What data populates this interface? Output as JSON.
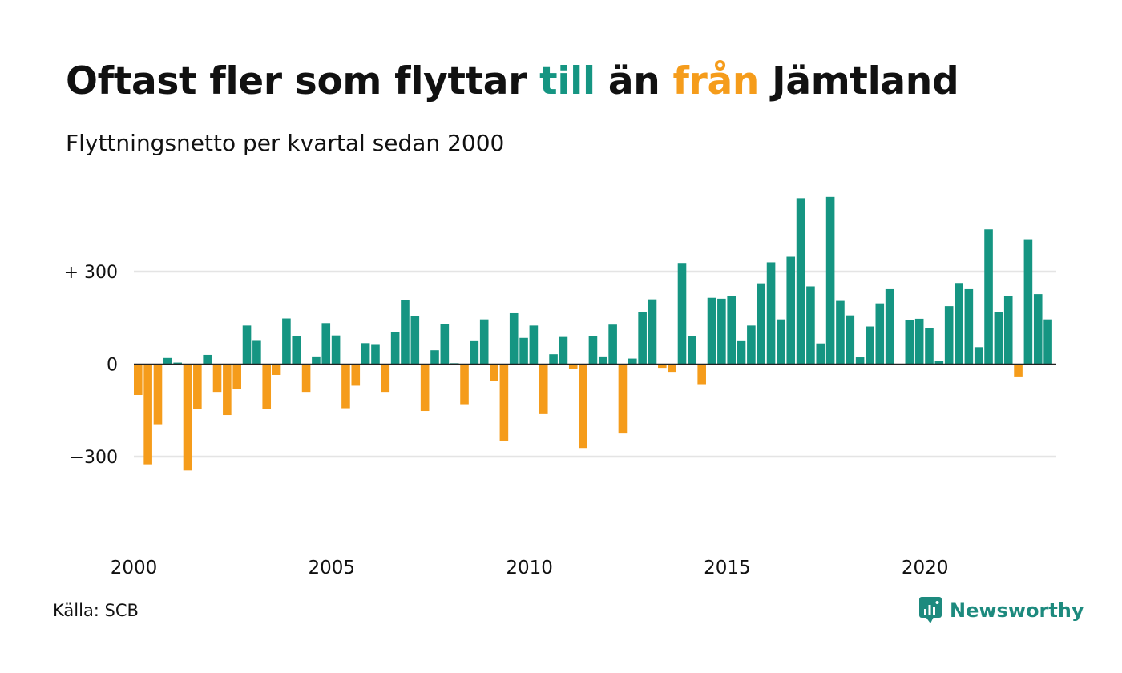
{
  "title": {
    "part1": "Oftast fler som flyttar ",
    "highlight_in": "till",
    "part2": " än ",
    "highlight_out": "från",
    "part3": " Jämtland"
  },
  "subtitle": "Flyttningsnetto per kvartal sedan 2000",
  "source": "Källa: SCB",
  "brand": {
    "name": "Newsworthy",
    "icon": "newsworthy-logo-icon",
    "color": "#1d8a7e"
  },
  "colors": {
    "positive": "#159582",
    "negative": "#f59c1b",
    "grid": "#e4e4e4",
    "zero_line": "#222222",
    "text": "#111111"
  },
  "chart_data": {
    "type": "bar",
    "start_year": 2000,
    "periods_per_year": 4,
    "ylim": [
      -520,
      600
    ],
    "grid": true,
    "y_ticks": [
      {
        "value": 300,
        "label": "+ 300"
      },
      {
        "value": 0,
        "label": "0"
      },
      {
        "value": -300,
        "label": "−300"
      }
    ],
    "x_ticks": [
      {
        "year": 2000,
        "label": "2000"
      },
      {
        "year": 2005,
        "label": "2005"
      },
      {
        "year": 2010,
        "label": "2010"
      },
      {
        "year": 2015,
        "label": "2015"
      },
      {
        "year": 2020,
        "label": "2020"
      }
    ],
    "values": [
      -100,
      -325,
      -195,
      20,
      5,
      -345,
      -145,
      30,
      -90,
      -165,
      -80,
      125,
      78,
      -145,
      -35,
      148,
      90,
      -90,
      25,
      133,
      93,
      -143,
      -70,
      68,
      65,
      -90,
      104,
      208,
      155,
      -152,
      45,
      130,
      3,
      -130,
      77,
      145,
      -55,
      -248,
      165,
      85,
      125,
      -162,
      32,
      88,
      -15,
      -272,
      90,
      25,
      128,
      -225,
      18,
      170,
      210,
      -12,
      -25,
      328,
      92,
      -65,
      215,
      212,
      220,
      77,
      125,
      262,
      330,
      145,
      348,
      538,
      252,
      67,
      542,
      205,
      158,
      22,
      122,
      197,
      243,
      0,
      142,
      147,
      118,
      10,
      188,
      263,
      243,
      55,
      437,
      170,
      220,
      -40,
      405,
      227,
      145
    ]
  }
}
